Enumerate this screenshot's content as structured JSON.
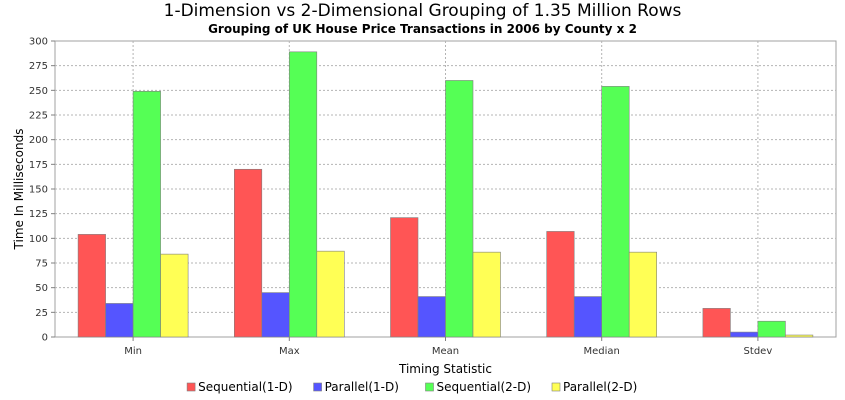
{
  "chart_data": {
    "type": "bar",
    "title": "1-Dimension vs 2-Dimensional Grouping of 1.35 Million Rows",
    "subtitle": "Grouping of UK House Price Transactions in 2006 by County x 2",
    "xlabel": "Timing Statistic",
    "ylabel": "Time In Milliseconds",
    "ylim": [
      0,
      300
    ],
    "yticks": [
      0,
      25,
      50,
      75,
      100,
      125,
      150,
      175,
      200,
      225,
      250,
      275,
      300
    ],
    "categories": [
      "Min",
      "Max",
      "Mean",
      "Median",
      "Stdev"
    ],
    "series": [
      {
        "name": "Sequential(1-D)",
        "color": "#ff5555",
        "values": [
          104,
          170,
          121,
          107,
          29
        ]
      },
      {
        "name": "Parallel(1-D)",
        "color": "#5555ff",
        "values": [
          34,
          45,
          41,
          41,
          5
        ]
      },
      {
        "name": "Sequential(2-D)",
        "color": "#55ff55",
        "values": [
          249,
          289,
          260,
          254,
          16
        ]
      },
      {
        "name": "Parallel(2-D)",
        "color": "#ffff55",
        "values": [
          84,
          87,
          86,
          86,
          2
        ]
      }
    ],
    "grid": true,
    "legend_position": "bottom"
  }
}
